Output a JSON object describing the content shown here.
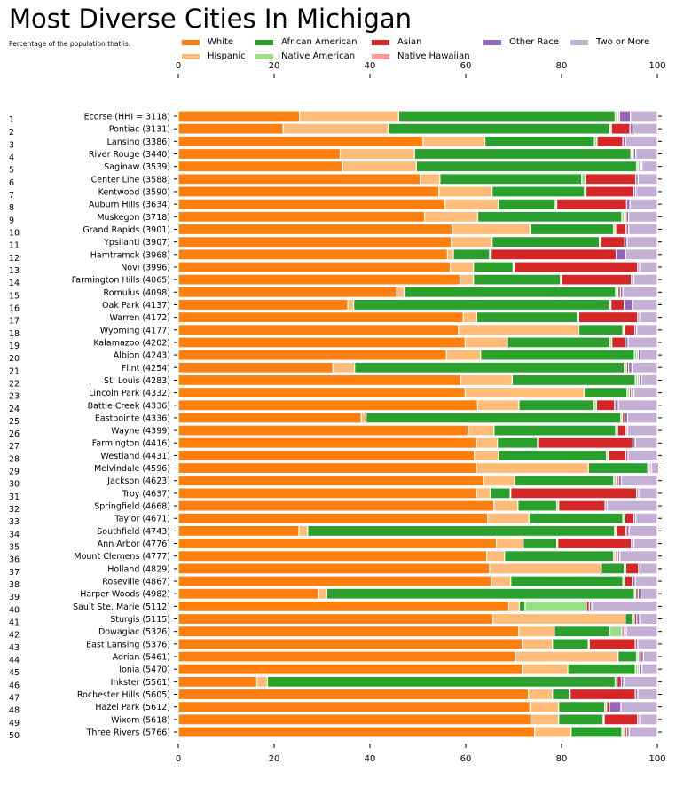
{
  "chart_data": {
    "type": "bar",
    "orientation": "horizontal",
    "stacked": true,
    "title": "Most Diverse Cities In Michigan",
    "subtitle": "Percentage of the population that is:",
    "xlim": [
      0,
      100
    ],
    "xticks": [
      "0",
      "20",
      "40",
      "60",
      "80",
      "100"
    ],
    "grid": false,
    "legend_position": "top",
    "series": [
      {
        "name": "White",
        "color": "#ff7f0e"
      },
      {
        "name": "Hispanic",
        "color": "#ffbb78"
      },
      {
        "name": "African American",
        "color": "#2ca02c"
      },
      {
        "name": "Native American",
        "color": "#98df8a"
      },
      {
        "name": "Asian",
        "color": "#d62728"
      },
      {
        "name": "Native Hawaiian",
        "color": "#ff9896"
      },
      {
        "name": "Other Race",
        "color": "#9467bd"
      },
      {
        "name": "Two or More",
        "color": "#c5b0d5"
      }
    ],
    "categories": [
      {
        "rank": "1",
        "label": "Ecorse (HHI = 3118)",
        "values": [
          25.3,
          20.7,
          45.2,
          0.6,
          0.3,
          0,
          2.3,
          5.6
        ]
      },
      {
        "rank": "2",
        "label": "Pontiac (3131)",
        "values": [
          21.9,
          21.9,
          46.3,
          0.3,
          3.9,
          0,
          0.6,
          5.1
        ]
      },
      {
        "rank": "3",
        "label": "Lansing (3386)",
        "values": [
          51.1,
          12.9,
          22.9,
          0.5,
          5.4,
          0,
          0.6,
          6.6
        ]
      },
      {
        "rank": "4",
        "label": "River Rouge (3440)",
        "values": [
          33.8,
          15.5,
          45.2,
          0.3,
          0.2,
          0,
          0.5,
          4.5
        ]
      },
      {
        "rank": "5",
        "label": "Saginaw (3539)",
        "values": [
          34.3,
          15.4,
          46.0,
          0.4,
          0.3,
          0,
          0.4,
          3.2
        ]
      },
      {
        "rank": "6",
        "label": "Center Line (3588)",
        "values": [
          50.5,
          4.1,
          29.6,
          0.8,
          10.5,
          0,
          0.5,
          4.0
        ]
      },
      {
        "rank": "7",
        "label": "Kentwood (3590)",
        "values": [
          54.4,
          11.1,
          19.3,
          0.3,
          10.0,
          0,
          0.4,
          4.5
        ]
      },
      {
        "rank": "8",
        "label": "Auburn Hills (3634)",
        "values": [
          55.7,
          11.1,
          11.9,
          0.3,
          14.6,
          0,
          0.7,
          5.7
        ]
      },
      {
        "rank": "9",
        "label": "Muskegon (3718)",
        "values": [
          51.4,
          11.1,
          30.1,
          0.5,
          0.4,
          0,
          0.5,
          6.0
        ]
      },
      {
        "rank": "10",
        "label": "Grand Rapids (3901)",
        "values": [
          57.2,
          16.2,
          17.5,
          0.4,
          2.2,
          0,
          0.5,
          6.0
        ]
      },
      {
        "rank": "11",
        "label": "Ypsilanti (3907)",
        "values": [
          57.0,
          8.5,
          22.4,
          0.3,
          5.0,
          0,
          0.5,
          6.3
        ]
      },
      {
        "rank": "12",
        "label": "Hamtramck (3968)",
        "values": [
          56.2,
          1.2,
          7.6,
          0.3,
          26.1,
          0,
          2.0,
          6.6
        ]
      },
      {
        "rank": "13",
        "label": "Novi (3996)",
        "values": [
          56.8,
          4.8,
          8.3,
          0.2,
          25.8,
          0,
          0.4,
          3.7
        ]
      },
      {
        "rank": "14",
        "label": "Farmington Hills (4065)",
        "values": [
          58.8,
          2.8,
          18.2,
          0.2,
          14.6,
          0,
          0.5,
          4.9
        ]
      },
      {
        "rank": "15",
        "label": "Romulus (4098)",
        "values": [
          45.6,
          1.6,
          44.1,
          0.5,
          0.5,
          0,
          0.5,
          7.2
        ]
      },
      {
        "rank": "16",
        "label": "Oak Park (4137)",
        "values": [
          35.4,
          1.2,
          53.4,
          0.3,
          2.8,
          0,
          1.7,
          5.2
        ]
      },
      {
        "rank": "17",
        "label": "Warren (4172)",
        "values": [
          59.5,
          2.8,
          21.0,
          0.3,
          12.3,
          0,
          0.4,
          3.7
        ]
      },
      {
        "rank": "18",
        "label": "Wyoming (4177)",
        "values": [
          58.5,
          25.1,
          9.2,
          0.3,
          2.2,
          0,
          0.4,
          4.3
        ]
      },
      {
        "rank": "19",
        "label": "Kalamazoo (4202)",
        "values": [
          59.9,
          8.8,
          21.4,
          0.4,
          2.8,
          0,
          0.6,
          6.1
        ]
      },
      {
        "rank": "20",
        "label": "Albion (4243)",
        "values": [
          56.0,
          7.1,
          32.1,
          0.5,
          0.3,
          0,
          0.5,
          3.5
        ]
      },
      {
        "rank": "21",
        "label": "Flint (4254)",
        "values": [
          32.3,
          4.5,
          56.3,
          0.5,
          0.4,
          0,
          0.7,
          5.3
        ]
      },
      {
        "rank": "22",
        "label": "St. Louis (4283)",
        "values": [
          59.0,
          10.7,
          25.7,
          0.5,
          0.3,
          0,
          0.5,
          3.3
        ]
      },
      {
        "rank": "23",
        "label": "Lincoln Park (4332)",
        "values": [
          59.9,
          24.8,
          9.0,
          0.5,
          0.4,
          0,
          0.5,
          4.9
        ]
      },
      {
        "rank": "24",
        "label": "Battle Creek (4336)",
        "values": [
          62.5,
          8.6,
          15.7,
          0.5,
          3.8,
          0,
          0.8,
          8.1
        ]
      },
      {
        "rank": "25",
        "label": "Eastpointe (4336)",
        "values": [
          38.2,
          1.0,
          53.2,
          0.3,
          0.5,
          0,
          0.6,
          6.2
        ]
      },
      {
        "rank": "26",
        "label": "Wayne (4399)",
        "values": [
          60.5,
          5.4,
          25.4,
          0.4,
          1.8,
          0,
          0.3,
          6.2
        ]
      },
      {
        "rank": "27",
        "label": "Farmington (4416)",
        "values": [
          62.3,
          4.3,
          8.4,
          0.2,
          19.7,
          0,
          0.5,
          4.6
        ]
      },
      {
        "rank": "28",
        "label": "Westland (4431)",
        "values": [
          61.8,
          5.0,
          22.6,
          0.4,
          3.6,
          0,
          0.5,
          6.1
        ]
      },
      {
        "rank": "29",
        "label": "Melvindale (4596)",
        "values": [
          62.3,
          23.3,
          12.4,
          0.2,
          0.3,
          0,
          0.3,
          1.5
        ]
      },
      {
        "rank": "30",
        "label": "Jackson (4623)",
        "values": [
          63.8,
          6.4,
          20.7,
          0.5,
          0.5,
          0,
          0.6,
          7.5
        ]
      },
      {
        "rank": "31",
        "label": "Troy (4637)",
        "values": [
          62.3,
          2.8,
          4.2,
          0.1,
          26.3,
          0,
          0.4,
          3.9
        ]
      },
      {
        "rank": "32",
        "label": "Springfield (4668)",
        "values": [
          65.9,
          5.0,
          8.1,
          0.4,
          9.7,
          0,
          0.4,
          10.5
        ]
      },
      {
        "rank": "33",
        "label": "Taylor (4671)",
        "values": [
          64.6,
          8.6,
          19.6,
          0.4,
          1.9,
          0,
          0.4,
          4.5
        ]
      },
      {
        "rank": "34",
        "label": "Southfield (4743)",
        "values": [
          25.2,
          1.8,
          64.1,
          0.3,
          2.1,
          0,
          0.6,
          5.9
        ]
      },
      {
        "rank": "35",
        "label": "Ann Arbor (4776)",
        "values": [
          66.4,
          5.6,
          7.0,
          0.2,
          15.4,
          0,
          0.5,
          4.9
        ]
      },
      {
        "rank": "36",
        "label": "Mount Clemens (4777)",
        "values": [
          64.4,
          3.7,
          22.8,
          0.4,
          0.5,
          0,
          0.4,
          7.8
        ]
      },
      {
        "rank": "37",
        "label": "Holland (4829)",
        "values": [
          65.0,
          23.3,
          4.8,
          0.3,
          2.7,
          0,
          0.4,
          3.5
        ]
      },
      {
        "rank": "38",
        "label": "Roseville (4867)",
        "values": [
          65.3,
          4.1,
          23.4,
          0.4,
          1.6,
          0,
          0.6,
          4.6
        ]
      },
      {
        "rank": "39",
        "label": "Harper Woods (4982)",
        "values": [
          29.3,
          1.7,
          64.2,
          0.3,
          0.5,
          0,
          0.6,
          3.4
        ]
      },
      {
        "rank": "40",
        "label": "Sault Ste. Marie (5112)",
        "values": [
          69.0,
          2.2,
          1.2,
          12.8,
          0.6,
          0,
          0.5,
          13.7
        ]
      },
      {
        "rank": "41",
        "label": "Sturgis (5115)",
        "values": [
          65.7,
          27.6,
          1.5,
          0.4,
          0.5,
          0,
          0.6,
          3.7
        ]
      },
      {
        "rank": "42",
        "label": "Dowagiac (5326)",
        "values": [
          71.1,
          7.4,
          11.6,
          2.5,
          0.4,
          0,
          0.5,
          6.5
        ]
      },
      {
        "rank": "43",
        "label": "East Lansing (5376)",
        "values": [
          71.8,
          6.3,
          7.5,
          0.2,
          9.6,
          0,
          0.5,
          4.1
        ]
      },
      {
        "rank": "44",
        "label": "Adrian (5461)",
        "values": [
          70.3,
          21.5,
          3.9,
          0.4,
          0.4,
          0,
          0.6,
          2.9
        ]
      },
      {
        "rank": "45",
        "label": "Ionia (5470)",
        "values": [
          71.8,
          9.5,
          14.1,
          0.5,
          0.3,
          0,
          0.6,
          3.2
        ]
      },
      {
        "rank": "46",
        "label": "Inkster (5561)",
        "values": [
          16.4,
          2.2,
          72.6,
          0.4,
          0.9,
          0,
          0.5,
          7.0
        ]
      },
      {
        "rank": "47",
        "label": "Rochester Hills (5605)",
        "values": [
          73.1,
          5.0,
          3.5,
          0.2,
          13.6,
          0,
          0.5,
          4.1
        ]
      },
      {
        "rank": "48",
        "label": "Hazel Park (5612)",
        "values": [
          73.4,
          6.0,
          9.6,
          0.4,
          0.6,
          0,
          2.4,
          7.6
        ]
      },
      {
        "rank": "49",
        "label": "Wixom (5618)",
        "values": [
          73.6,
          5.8,
          9.3,
          0.2,
          7.0,
          0,
          0.4,
          3.7
        ]
      },
      {
        "rank": "50",
        "label": "Three Rivers (5766)",
        "values": [
          74.4,
          7.6,
          10.6,
          0.4,
          0.6,
          0,
          0.5,
          5.9
        ]
      }
    ]
  }
}
